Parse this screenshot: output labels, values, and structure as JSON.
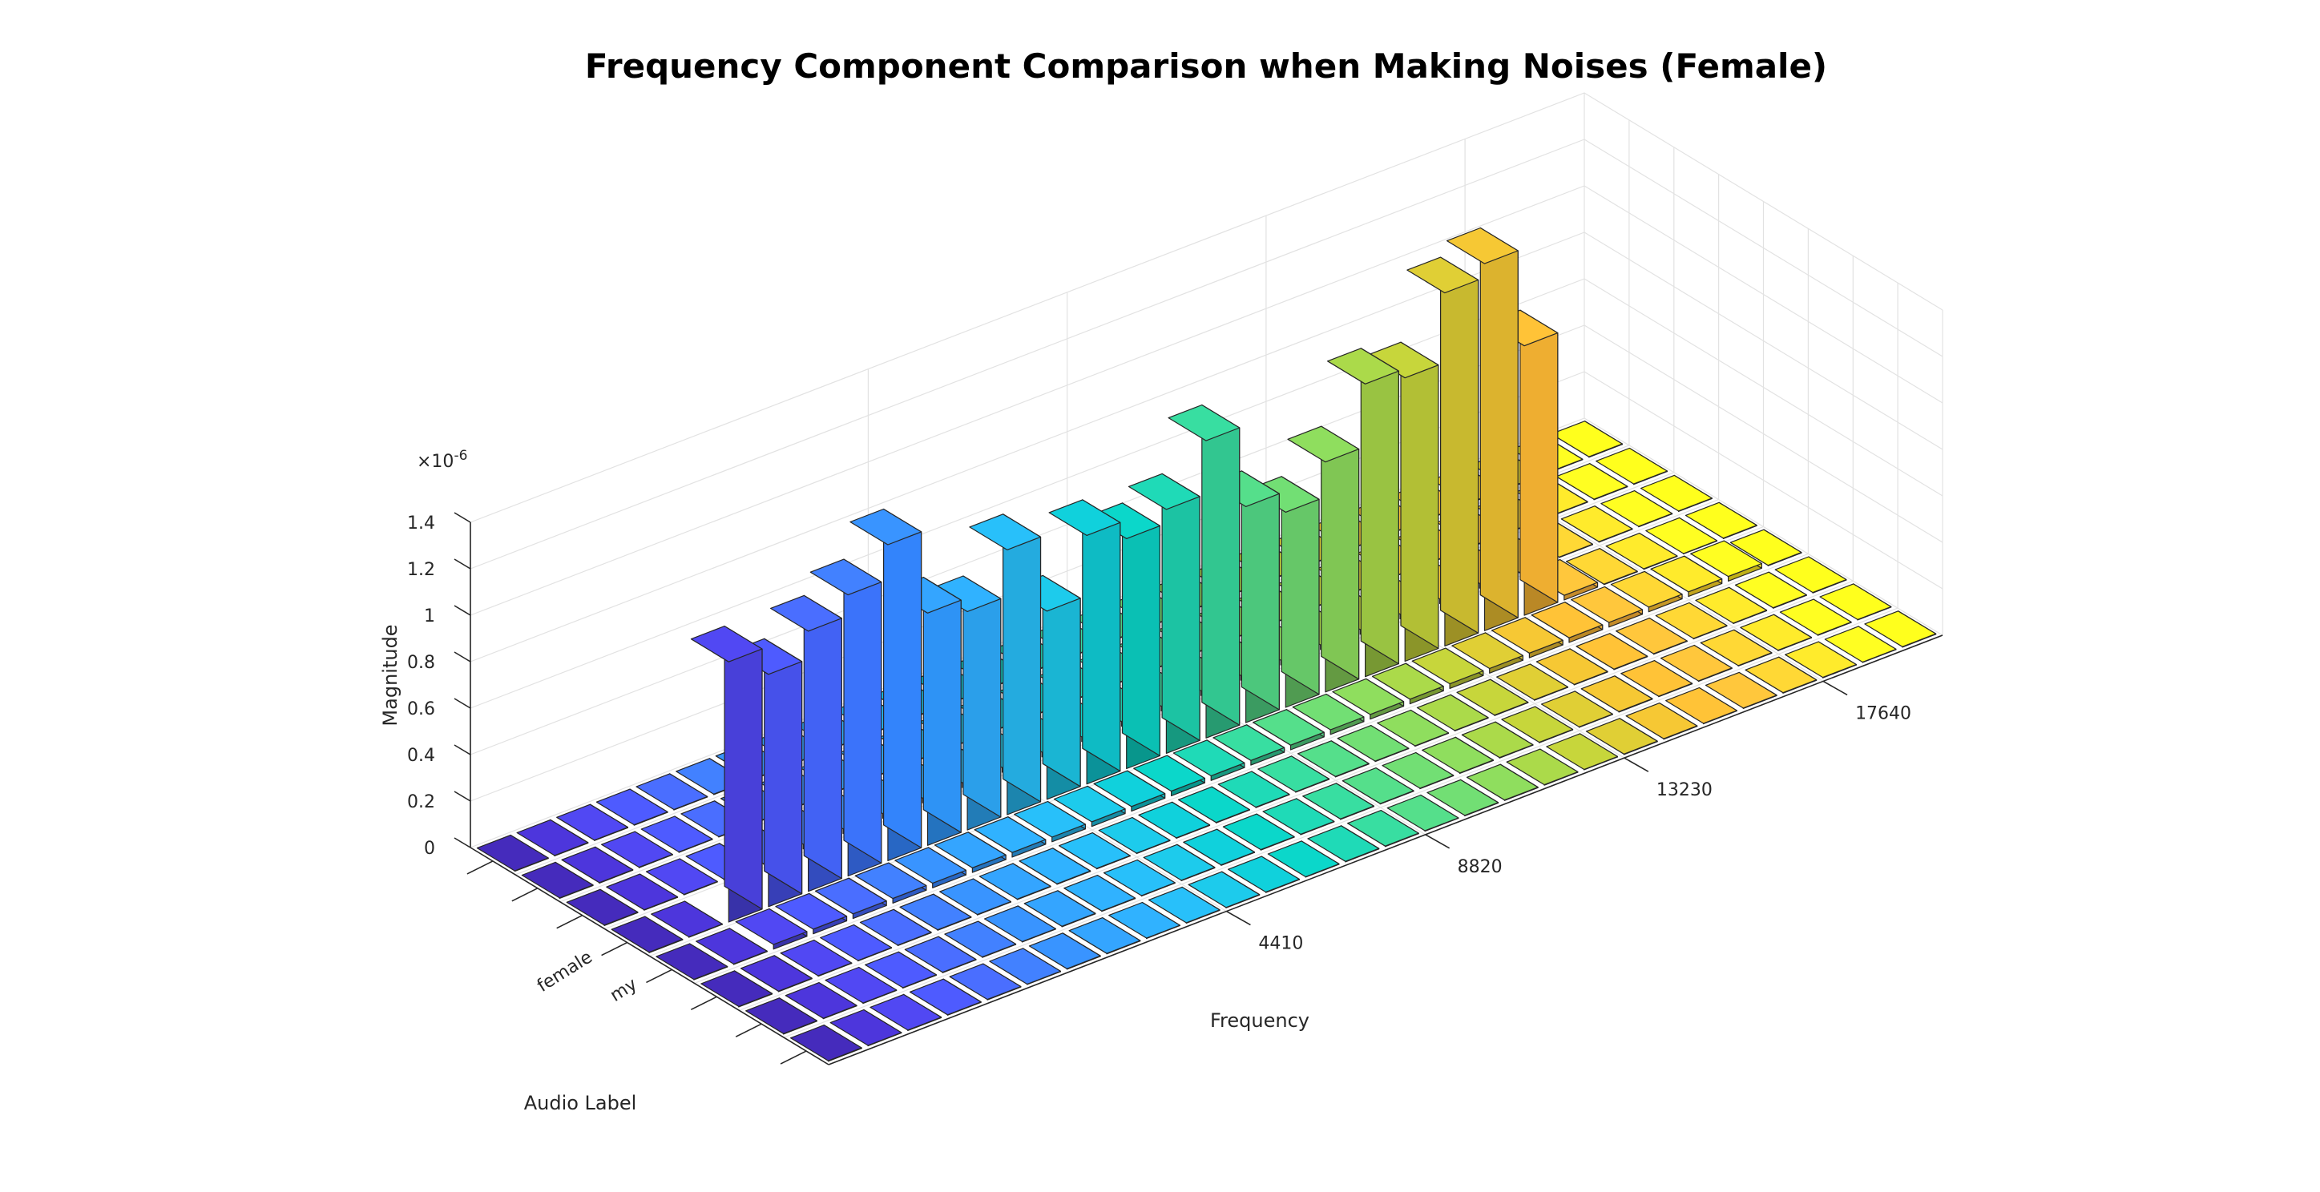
{
  "chart_data": {
    "type": "bar3",
    "title": "Frequency Component Comparison when Making Noises (Female)",
    "xlabel": "Frequency",
    "ylabel": "Audio Label",
    "zlabel": "Magnitude",
    "z_exponent_label": "×10",
    "z_exponent_power": "-6",
    "x_ticks": [
      {
        "label": "4410",
        "index": 10
      },
      {
        "label": "8820",
        "index": 15
      },
      {
        "label": "13230",
        "index": 20
      },
      {
        "label": "17640",
        "index": 25
      }
    ],
    "y_tick_labels": [
      "",
      "",
      "",
      "my",
      "female",
      "",
      "",
      ""
    ],
    "z_ticks": [
      "0",
      "0.2",
      "0.4",
      "0.6",
      "0.8",
      "1",
      "1.2",
      "1.4"
    ],
    "zlim": [
      0,
      1.4
    ],
    "n_frequency_bins": 28,
    "n_labels": 8,
    "grid": true,
    "colormap": "parula-by-frequency",
    "series": [
      {
        "values": [
          0.002,
          0.002,
          0.002,
          0.002,
          0.002,
          0.002,
          0.002,
          0.002,
          0.002,
          0.002,
          0.002,
          0.002,
          0.002,
          0.002,
          0.002,
          0.002,
          0.002,
          0.002,
          0.002,
          0.002,
          0.002,
          0.002,
          0.002,
          0.002,
          0.002,
          0.002,
          0.002,
          0.002
        ]
      },
      {
        "values": [
          0.002,
          0.002,
          0.002,
          0.002,
          0.002,
          0.002,
          0.002,
          0.002,
          0.002,
          0.002,
          0.002,
          0.002,
          0.002,
          0.002,
          0.002,
          0.002,
          0.002,
          0.002,
          0.002,
          0.002,
          0.002,
          0.002,
          0.002,
          0.002,
          0.002,
          0.002,
          0.002,
          0.002
        ]
      },
      {
        "values": [
          0.002,
          0.002,
          0.002,
          0.002,
          0.002,
          0.002,
          0.002,
          0.002,
          0.002,
          0.002,
          0.002,
          0.002,
          0.002,
          0.002,
          0.002,
          0.002,
          0.002,
          0.002,
          0.002,
          0.002,
          0.002,
          0.002,
          0.002,
          0.002,
          0.002,
          0.002,
          0.002,
          0.002
        ]
      },
      {
        "values": [
          0.002,
          0.002,
          0.02,
          0.02,
          0.02,
          0.02,
          0.02,
          0.02,
          0.02,
          0.02,
          0.02,
          0.02,
          0.02,
          0.02,
          0.02,
          0.02,
          0.02,
          0.02,
          0.02,
          0.02,
          0.02,
          0.02,
          0.02,
          0.02,
          0.02,
          0.02,
          0.02,
          0.002
        ]
      },
      {
        "values": [
          0.002,
          0.002,
          1.12,
          1.0,
          1.12,
          1.21,
          1.36,
          1.0,
          0.94,
          1.14,
          0.81,
          1.07,
          0.99,
          1.05,
          1.28,
          0.93,
          0.84,
          0.99,
          1.26,
          1.22,
          1.52,
          1.58,
          1.16,
          0.02,
          0.002,
          0.002,
          0.002,
          0.002
        ]
      },
      {
        "values": [
          0.002,
          0.002,
          0.002,
          0.002,
          0.002,
          0.02,
          0.02,
          0.02,
          0.02,
          0.02,
          0.02,
          0.02,
          0.02,
          0.02,
          0.02,
          0.02,
          0.02,
          0.02,
          0.02,
          0.02,
          0.02,
          0.02,
          0.02,
          0.002,
          0.002,
          0.002,
          0.002,
          0.002
        ]
      },
      {
        "values": [
          0.002,
          0.002,
          0.002,
          0.002,
          0.002,
          0.002,
          0.002,
          0.002,
          0.002,
          0.002,
          0.002,
          0.002,
          0.002,
          0.002,
          0.002,
          0.002,
          0.002,
          0.002,
          0.002,
          0.002,
          0.002,
          0.002,
          0.002,
          0.002,
          0.002,
          0.002,
          0.002,
          0.002
        ]
      },
      {
        "values": [
          0.002,
          0.002,
          0.002,
          0.002,
          0.002,
          0.002,
          0.002,
          0.002,
          0.002,
          0.002,
          0.002,
          0.002,
          0.002,
          0.002,
          0.002,
          0.002,
          0.002,
          0.002,
          0.002,
          0.002,
          0.002,
          0.002,
          0.002,
          0.002,
          0.002,
          0.002,
          0.002,
          0.002
        ]
      }
    ],
    "colors": [
      "#3e26a8",
      "#4530c4",
      "#4840d9",
      "#4651ea",
      "#4262f4",
      "#3b73fa",
      "#3384fb",
      "#2e93f5",
      "#2b9fea",
      "#24abdf",
      "#1ab5d3",
      "#0ebbc4",
      "#0ac0b4",
      "#1cc3a3",
      "#32c690",
      "#4cc77c",
      "#66c768",
      "#80c654",
      "#99c342",
      "#b2bf35",
      "#c8b92f",
      "#dcb32e",
      "#eeae31",
      "#fbb236",
      "#fcc12f",
      "#f9d227",
      "#f6e31e",
      "#f5f41a"
    ]
  }
}
